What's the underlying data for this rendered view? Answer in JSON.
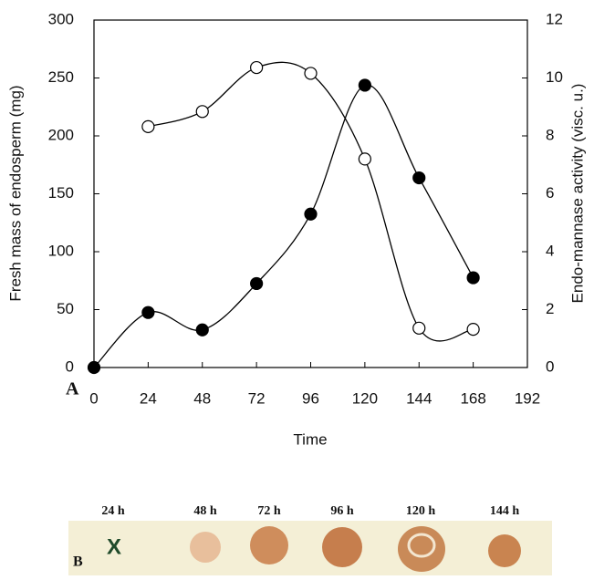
{
  "chart_data": {
    "type": "line",
    "x_label": "Time",
    "y_label": "Fresh mass of endosperm (mg)",
    "y2_label": "Endo-mannase activity  (visc. u.)",
    "panel_label": "A",
    "x": [
      0,
      24,
      48,
      72,
      96,
      120,
      144,
      168
    ],
    "xlim": [
      0,
      192
    ],
    "xticks": [
      0,
      24,
      48,
      72,
      96,
      120,
      144,
      168,
      192
    ],
    "ylim": [
      0,
      300
    ],
    "yticks": [
      0,
      50,
      100,
      150,
      200,
      250,
      300
    ],
    "y2lim": [
      0,
      12
    ],
    "y2ticks": [
      0,
      2,
      4,
      6,
      8,
      10,
      12
    ],
    "series": [
      {
        "color": "#000000",
        "marker": "open",
        "values": [
          null,
          208,
          221,
          259,
          254,
          180,
          34,
          33
        ]
      },
      {
        "color": "#000000",
        "marker": "filled",
        "axis": "y2",
        "values": [
          0,
          1.9,
          1.3,
          2.9,
          5.3,
          9.75,
          6.55,
          3.1
        ]
      }
    ]
  },
  "panel_b": {
    "label": "B",
    "mark": "X",
    "lanes": [
      "24 h",
      "48 h",
      "72 h",
      "96 h",
      "120 h",
      "144 h"
    ]
  }
}
